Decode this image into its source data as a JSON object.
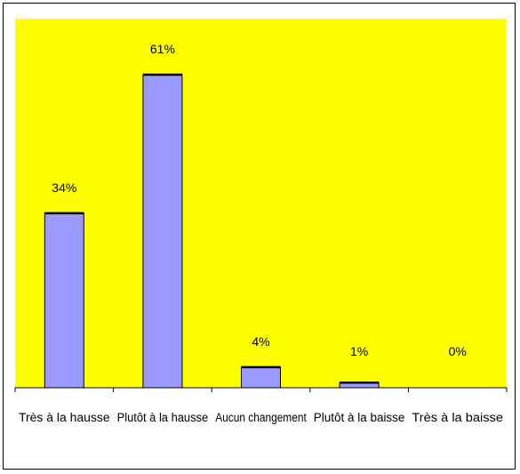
{
  "chart_data": {
    "type": "bar",
    "categories": [
      "Très à la hausse",
      "Plutôt à la hausse",
      "Aucun changement",
      "Plutôt à la baisse",
      "Très à la baisse"
    ],
    "values": [
      34,
      61,
      4,
      1,
      0
    ],
    "value_labels": [
      "34%",
      "61%",
      "4%",
      "1%",
      "0%"
    ],
    "title": "",
    "xlabel": "",
    "ylabel": "",
    "ylim": [
      0,
      61
    ],
    "grid": false,
    "legend": "none",
    "colors": {
      "plot_background": "#ffff00",
      "bar_fill": "#9999ff",
      "bar_stroke": "#000000",
      "axis": "#000000"
    }
  }
}
